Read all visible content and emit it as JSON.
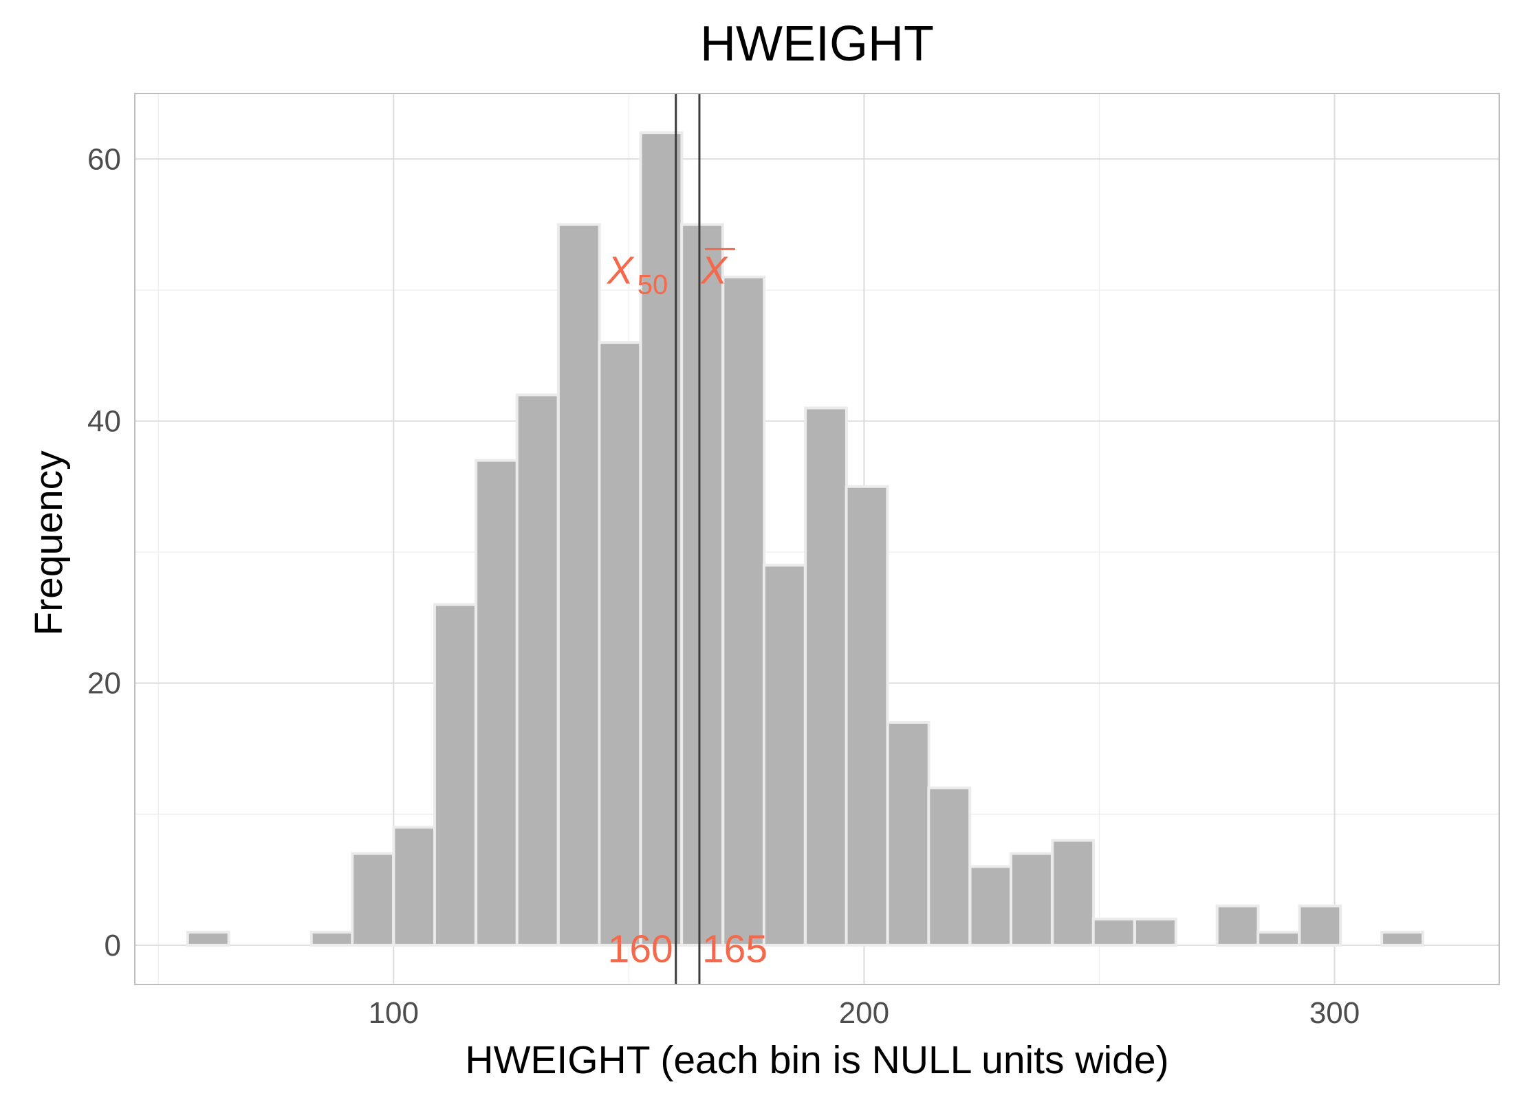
{
  "chart_data": {
    "type": "bar",
    "title": "HWEIGHT",
    "xlabel": "HWEIGHT (each bin is NULL units wide)",
    "ylabel": "Frequency",
    "xlim": [
      45,
      335
    ],
    "ylim": [
      -3,
      65
    ],
    "x_ticks": [
      100,
      200,
      300
    ],
    "y_ticks": [
      0,
      20,
      40,
      60
    ],
    "grid": true,
    "bin_width": 8.75,
    "bins": [
      {
        "x": 60.6,
        "count": 1
      },
      {
        "x": 69.4,
        "count": 0
      },
      {
        "x": 78.1,
        "count": 0
      },
      {
        "x": 86.9,
        "count": 1
      },
      {
        "x": 95.6,
        "count": 7
      },
      {
        "x": 104.4,
        "count": 9
      },
      {
        "x": 113.1,
        "count": 26
      },
      {
        "x": 121.9,
        "count": 37
      },
      {
        "x": 130.6,
        "count": 42
      },
      {
        "x": 139.4,
        "count": 55
      },
      {
        "x": 148.1,
        "count": 46
      },
      {
        "x": 156.9,
        "count": 62
      },
      {
        "x": 165.6,
        "count": 55
      },
      {
        "x": 174.4,
        "count": 51
      },
      {
        "x": 183.1,
        "count": 29
      },
      {
        "x": 191.9,
        "count": 41
      },
      {
        "x": 200.6,
        "count": 35
      },
      {
        "x": 209.4,
        "count": 17
      },
      {
        "x": 218.1,
        "count": 12
      },
      {
        "x": 226.9,
        "count": 6
      },
      {
        "x": 235.6,
        "count": 7
      },
      {
        "x": 244.4,
        "count": 8
      },
      {
        "x": 253.1,
        "count": 2
      },
      {
        "x": 261.9,
        "count": 2
      },
      {
        "x": 270.6,
        "count": 0
      },
      {
        "x": 279.4,
        "count": 3
      },
      {
        "x": 288.1,
        "count": 1
      },
      {
        "x": 296.9,
        "count": 3
      },
      {
        "x": 305.6,
        "count": 0
      },
      {
        "x": 314.4,
        "count": 1
      }
    ],
    "annotations": {
      "median": {
        "symbol": "X",
        "subscript": "50",
        "value": 160,
        "label": "160"
      },
      "mean": {
        "symbol": "X",
        "overbar": true,
        "value": 165,
        "label": "165"
      }
    }
  },
  "colors": {
    "bar_fill": "#b3b3b3",
    "bar_stroke": "#ebebeb",
    "grid_major": "#dcdcdc",
    "grid_minor": "#f0f0f0",
    "panel_border": "#bdbdbd",
    "vline": "#3c3c3c",
    "annotation": "#f4694b"
  }
}
